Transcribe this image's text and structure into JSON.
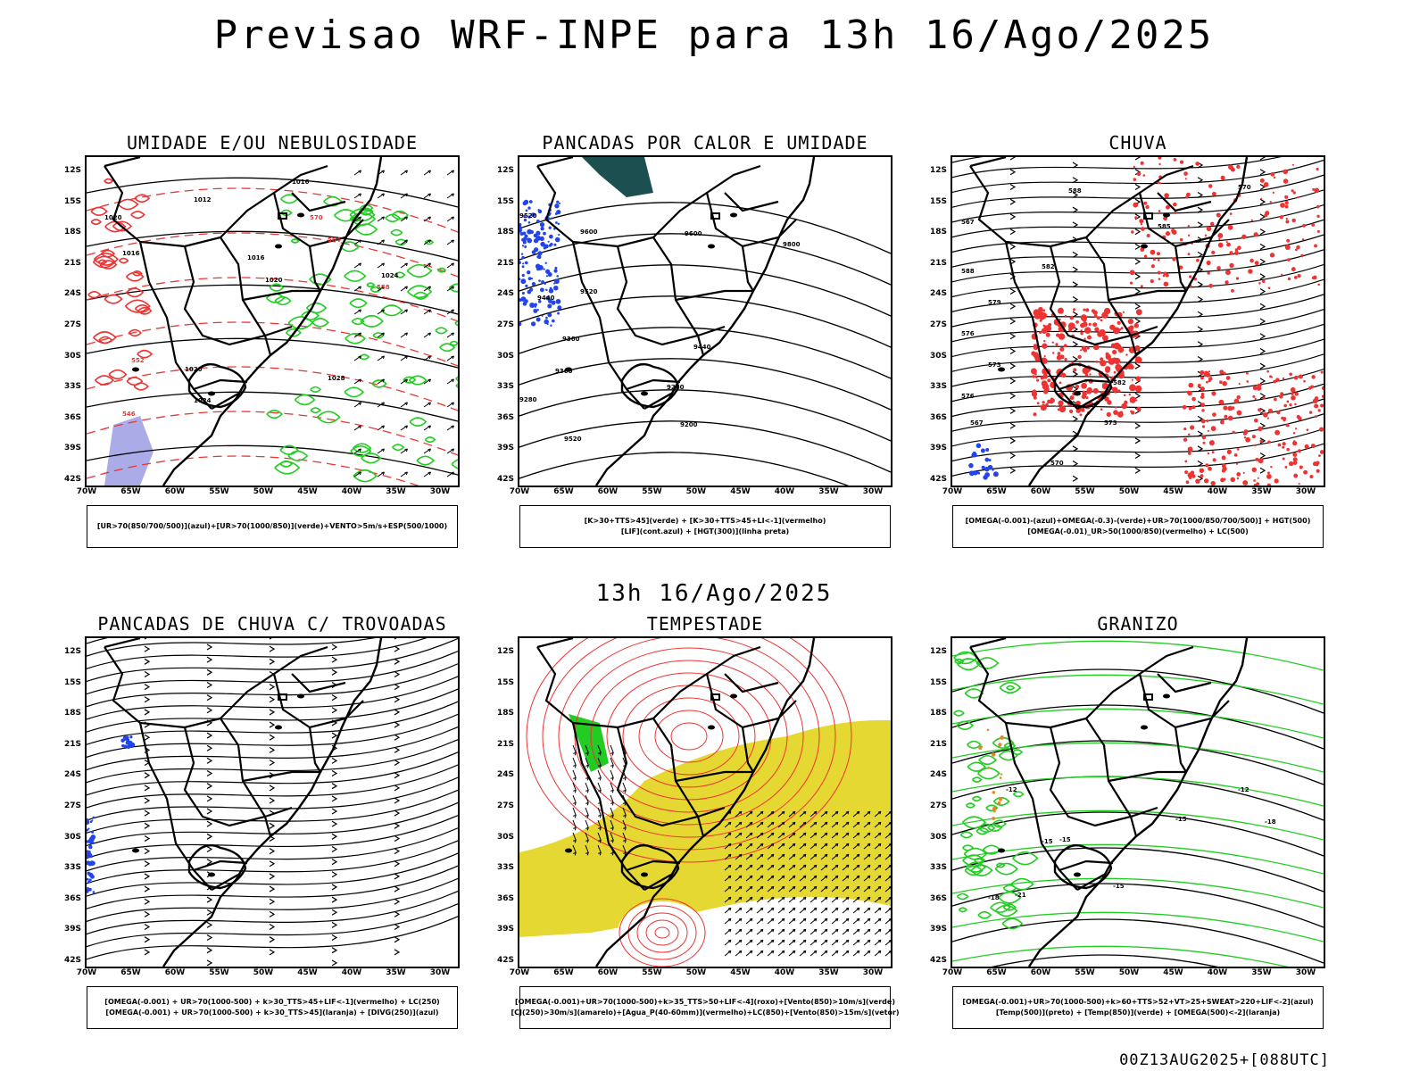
{
  "title": "Previsao WRF-INPE  para 13h 16/Ago/2025",
  "mid_date": "13h 16/Ago/2025",
  "footer": "00Z13AUG2025+[088UTC]",
  "lat_ticks": [
    "12S",
    "15S",
    "18S",
    "21S",
    "24S",
    "27S",
    "30S",
    "33S",
    "36S",
    "39S",
    "42S"
  ],
  "lon_ticks": [
    "70W",
    "65W",
    "60W",
    "55W",
    "50W",
    "45W",
    "40W",
    "35W",
    "30W"
  ],
  "panels": [
    {
      "id": "umidade",
      "title": "UMIDADE E/OU NEBULOSIDADE",
      "legend": [
        "[UR>70(850/700/500)](azul)+[UR>70(1000/850)](verde)+VENTO>5m/s+ESP(500/1000)"
      ],
      "contour_labels": [
        "1016",
        "1012",
        "1020",
        "1016",
        "1020",
        "1024",
        "1028",
        "1020",
        "1024",
        "1016",
        "570",
        "564",
        "558",
        "552",
        "546"
      ]
    },
    {
      "id": "pancadas-calor",
      "title": "PANCADAS POR CALOR E UMIDADE",
      "legend": [
        "[K>30+TTS>45](verde) + [K>30+TTS>45+LI<-1](vermelho)",
        "[LIF](cont.azul) + [HGT(300)](linha preta)"
      ],
      "contour_labels": [
        "9520",
        "9600",
        "9600",
        "9800",
        "9520",
        "9440",
        "9360",
        "9440",
        "9360",
        "9280",
        "9280",
        "9200",
        "9520"
      ]
    },
    {
      "id": "chuva",
      "title": "CHUVA",
      "legend": [
        "[OMEGA(-0.001)-(azul)+OMEGA(-0.3)-(verde)+UR>70(1000/850/700/500)] + HGT(500)",
        "[OMEGA(-0.01)_UR>50(1000/850)(vermelho) + LC(500)"
      ],
      "contour_labels": [
        "588",
        "585",
        "582",
        "579",
        "576",
        "573",
        "570",
        "567",
        "588",
        "582",
        "576",
        "573",
        "570",
        "567"
      ]
    },
    {
      "id": "pancadas-trovoadas",
      "title": "PANCADAS DE CHUVA C/ TROVOADAS",
      "legend": [
        "[OMEGA(-0.001) + UR>70(1000-500) + k>30_TTS>45+LIF<-1](vermelho) + LC(250)",
        "[OMEGA(-0.001) + UR>70(1000-500) + k>30_TTS>45](laranja) + [DIVG(250)](azul)"
      ],
      "contour_labels": []
    },
    {
      "id": "tempestade",
      "title": "TEMPESTADE",
      "legend": [
        "[OMEGA(-0.001)+UR>70(1000-500)+k>35_TTS>50+LIF<-4](roxo)+[Vento(850)>10m/s](verde)",
        "[CJ(250)>30m/s](amarelo)+[Agua_P(40-60mm)](vermelho)+LC(850)+[Vento(850)>15m/s](vetor)"
      ],
      "contour_labels": []
    },
    {
      "id": "granizo",
      "title": "GRANIZO",
      "legend": [
        "[OMEGA(-0.001)+UR>70(1000-500)+k>60+TTS>52+VT>25+SWEAT>220+LIF<-2](azul)",
        "[Temp(500)](preto) + [Temp(850)](verde) + [OMEGA(500)<-2](laranja)"
      ],
      "contour_labels": [
        "-12",
        "-12",
        "-15",
        "-15",
        "-15",
        "-15",
        "-18",
        "-21",
        "-18"
      ]
    }
  ],
  "colors": {
    "contour_black": "#000000",
    "humidity_green": "#22cc22",
    "humidity_blue": "#8888dd",
    "rain_red": "#ee3333",
    "thickness_red": "#ee3333",
    "jet_yellow": "#e6d832",
    "lif_blue": "#2244ee",
    "teal": "#1c5050"
  }
}
